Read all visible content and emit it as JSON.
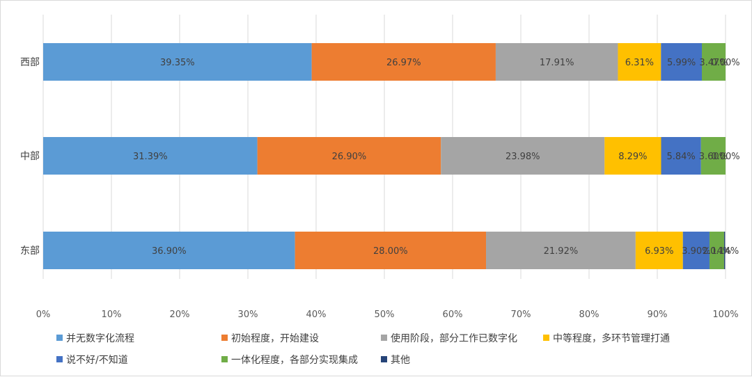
{
  "chart_data": {
    "type": "bar",
    "orientation": "horizontal",
    "stacked": "percent",
    "categories": [
      "西部",
      "中部",
      "东部"
    ],
    "series": [
      {
        "name": "并无数字化流程",
        "color": "#5b9bd5",
        "values": [
          39.35,
          31.39,
          36.9
        ],
        "labels": [
          "39.35%",
          "31.39%",
          "36.90%"
        ]
      },
      {
        "name": "初始程度，开始建设",
        "color": "#ed7d31",
        "values": [
          26.97,
          26.9,
          28.0
        ],
        "labels": [
          "26.97%",
          "26.90%",
          "28.00%"
        ]
      },
      {
        "name": "使用阶段，部分工作已数字化",
        "color": "#a5a5a5",
        "values": [
          17.91,
          23.98,
          21.92
        ],
        "labels": [
          "17.91%",
          "23.98%",
          "21.92%"
        ]
      },
      {
        "name": "中等程度，多环节管理打通",
        "color": "#ffc000",
        "values": [
          6.31,
          8.29,
          6.93
        ],
        "labels": [
          "6.31%",
          "8.29%",
          "6.93%"
        ]
      },
      {
        "name": "说不好/不知道",
        "color": "#4472c4",
        "values": [
          5.99,
          5.84,
          3.9
        ],
        "labels": [
          "5.99%",
          "5.84%",
          "3.90%"
        ]
      },
      {
        "name": "一体化程度，各部分实现集成",
        "color": "#70ad47",
        "values": [
          3.47,
          3.6,
          2.14
        ],
        "labels": [
          "3.47%",
          "3.60%",
          "2.14%"
        ]
      },
      {
        "name": "其他",
        "color": "#264478",
        "values": [
          0.0,
          0.0,
          0.14
        ],
        "labels": [
          "0.00%",
          "0.00%",
          "0.14%"
        ]
      }
    ],
    "x_ticks": [
      "0%",
      "10%",
      "20%",
      "30%",
      "40%",
      "50%",
      "60%",
      "70%",
      "80%",
      "90%",
      "100%"
    ],
    "xlim": [
      0,
      100
    ],
    "grid": "vertical",
    "legend": "bottom"
  }
}
